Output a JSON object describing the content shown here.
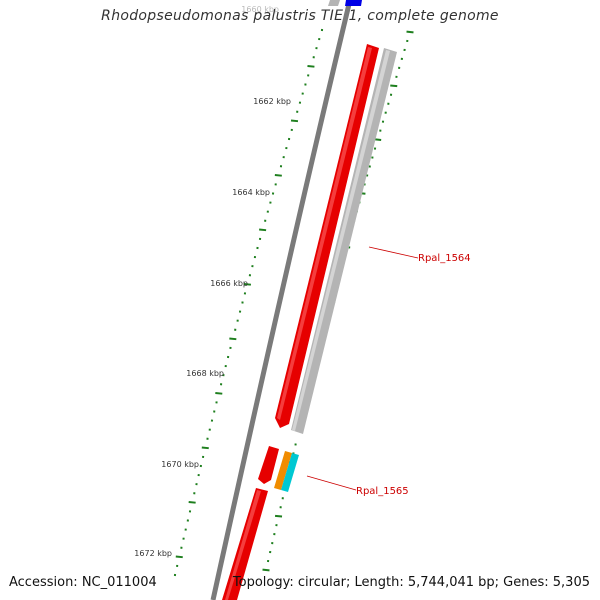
{
  "title": "Rhodopseudomonas palustris TIE-1, complete genome",
  "footer": {
    "accession": "Accession: NC_011004",
    "summary": "Topology: circular; Length: 5,744,041 bp; Genes: 5,305"
  },
  "colors": {
    "backbone": "#7a7a7a",
    "tick": "#1e7f1e",
    "gene_red": "#e60000",
    "gene_gray": "#b4b4b4",
    "gene_blue": "#0000e6",
    "gene_orange": "#f08c00",
    "gene_cyan": "#00c8d2",
    "label": "#cc0000"
  },
  "scale": {
    "unit": "kbp",
    "labels": [
      "1660 kbp",
      "1662 kbp",
      "1664 kbp",
      "1666 kbp",
      "1668 kbp",
      "1670 kbp",
      "1672 kbp"
    ]
  },
  "genes": [
    {
      "color": "blue"
    },
    {
      "color": "red"
    },
    {
      "color": "gray"
    },
    {
      "color": "red"
    },
    {
      "color": "orange"
    },
    {
      "color": "cyan"
    },
    {
      "color": "red"
    }
  ],
  "labels": [
    {
      "text": "Rpal_1564"
    },
    {
      "text": "Rpal_1565"
    }
  ]
}
